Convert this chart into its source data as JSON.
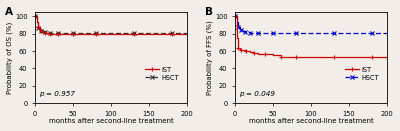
{
  "panel_A": {
    "title": "A",
    "ylabel": "Probability of OS (%)",
    "xlabel": "months after second-line treatment",
    "pvalue": "p = 0.957",
    "ylim": [
      0,
      105
    ],
    "xlim": [
      0,
      200
    ],
    "yticks": [
      0,
      20,
      40,
      60,
      80,
      100
    ],
    "xticks": [
      0,
      50,
      100,
      150,
      200
    ],
    "IST": {
      "x": [
        0,
        2,
        4,
        6,
        8,
        10,
        13,
        16,
        20,
        25,
        30,
        40,
        50,
        60,
        80,
        100,
        130,
        160,
        180,
        200
      ],
      "y": [
        100,
        93,
        88,
        85,
        83,
        82,
        81,
        81,
        80,
        80,
        80,
        80,
        80,
        80,
        80,
        80,
        80,
        80,
        80,
        80
      ],
      "color": "#cc0000",
      "linestyle": "-",
      "marker": "+"
    },
    "HSCT": {
      "x": [
        0,
        2,
        4,
        6,
        8,
        10,
        13,
        16,
        20,
        25,
        30,
        40,
        50,
        60,
        80,
        100,
        130,
        160,
        180,
        200
      ],
      "y": [
        100,
        93,
        87,
        85,
        83,
        83,
        82,
        82,
        81,
        81,
        81,
        81,
        81,
        81,
        81,
        81,
        81,
        81,
        81,
        81
      ],
      "color": "#333333",
      "linestyle": "--",
      "marker": "x"
    }
  },
  "panel_B": {
    "title": "B",
    "ylabel": "Probability of FFS (%)",
    "xlabel": "months after second-line treatment",
    "pvalue": "p = 0.049",
    "ylim": [
      0,
      105
    ],
    "xlim": [
      0,
      200
    ],
    "yticks": [
      0,
      20,
      40,
      60,
      80,
      100
    ],
    "xticks": [
      0,
      50,
      100,
      150,
      200
    ],
    "IST": {
      "x": [
        0,
        2,
        4,
        6,
        8,
        10,
        15,
        20,
        25,
        30,
        40,
        50,
        60,
        70,
        80,
        100,
        130,
        150,
        180,
        200
      ],
      "y": [
        100,
        75,
        64,
        62,
        61,
        61,
        60,
        59,
        58,
        57,
        56,
        55,
        53,
        53,
        53,
        53,
        53,
        53,
        53,
        52
      ],
      "color": "#cc0000",
      "linestyle": "-",
      "marker": "+"
    },
    "HSCT": {
      "x": [
        0,
        2,
        4,
        6,
        8,
        10,
        13,
        16,
        20,
        25,
        30,
        40,
        50,
        60,
        80,
        100,
        130,
        160,
        180,
        200
      ],
      "y": [
        100,
        94,
        88,
        85,
        84,
        83,
        82,
        82,
        81,
        81,
        81,
        81,
        81,
        81,
        81,
        81,
        81,
        81,
        81,
        81
      ],
      "color": "#0000cc",
      "linestyle": "--",
      "marker": "x"
    }
  },
  "bg_color": "#f2ede8",
  "legend_IST_color_A": "#cc0000",
  "legend_HSCT_color_A": "#333333",
  "legend_IST_color_B": "#cc0000",
  "legend_HSCT_color_B": "#0000cc",
  "fontsize_label": 5.0,
  "fontsize_tick": 4.8,
  "fontsize_pvalue": 5.2,
  "fontsize_title": 7.5,
  "fontsize_legend": 4.8,
  "marker_every_A_IST": [
    3,
    5,
    7,
    9,
    11,
    13,
    15,
    17,
    19
  ],
  "marker_every_A_HSCT": [
    2,
    4,
    6,
    8,
    10,
    12,
    14,
    16,
    18
  ]
}
